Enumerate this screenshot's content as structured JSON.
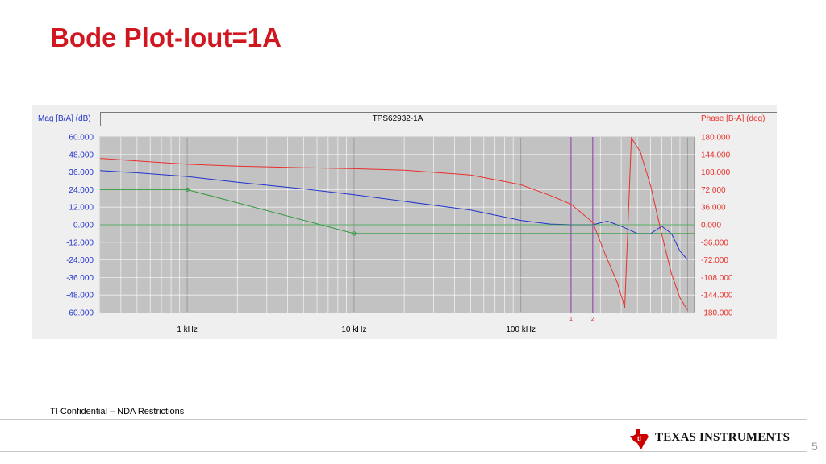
{
  "slide": {
    "title": "Bode Plot-Iout=1A",
    "footer": "TI Confidential – NDA Restrictions",
    "page_number": "5",
    "logo_text": "TEXAS INSTRUMENTS"
  },
  "chart_data": {
    "type": "line",
    "title": "TPS62932-1A",
    "ylabel_left": "Mag [B/A] (dB)",
    "ylabel_right": "Phase [B-A] (deg)",
    "x_scale": "log",
    "x_range_hz": [
      300,
      1100000
    ],
    "x_ticks": [
      {
        "value": 1000,
        "label": "1 kHz"
      },
      {
        "value": 10000,
        "label": "10 kHz"
      },
      {
        "value": 100000,
        "label": "100 kHz"
      }
    ],
    "y_left_range": [
      -60,
      60
    ],
    "y_left_ticks": [
      "60.000",
      "48.000",
      "36.000",
      "24.000",
      "12.000",
      "0.000",
      "-12.000",
      "-24.000",
      "-36.000",
      "-48.000",
      "-60.000"
    ],
    "y_right_range": [
      -180,
      180
    ],
    "y_right_ticks": [
      "180.000",
      "144.000",
      "108.000",
      "72.000",
      "36.000",
      "0.000",
      "-36.000",
      "-72.000",
      "-108.000",
      "-144.000",
      "-180.000"
    ],
    "grid": true,
    "cursors": [
      {
        "label": "1",
        "x": 200000
      },
      {
        "label": "2",
        "x": 270000
      }
    ],
    "series": [
      {
        "axis": "left",
        "color": "#2233cc",
        "points": [
          [
            300,
            37
          ],
          [
            500,
            35.5
          ],
          [
            1000,
            33
          ],
          [
            2000,
            29
          ],
          [
            5000,
            24.5
          ],
          [
            10000,
            20.5
          ],
          [
            20000,
            16
          ],
          [
            50000,
            10
          ],
          [
            100000,
            3
          ],
          [
            150000,
            0.5
          ],
          [
            200000,
            0
          ],
          [
            270000,
            0
          ],
          [
            330000,
            2.5
          ],
          [
            400000,
            -1
          ],
          [
            500000,
            -6
          ],
          [
            600000,
            -6
          ],
          [
            700000,
            -1
          ],
          [
            800000,
            -6
          ],
          [
            900000,
            -18
          ],
          [
            1000000,
            -24
          ]
        ]
      },
      {
        "axis": "right",
        "color": "#e8302a",
        "points": [
          [
            300,
            136
          ],
          [
            500,
            131
          ],
          [
            1000,
            124
          ],
          [
            2000,
            120
          ],
          [
            5000,
            117
          ],
          [
            10000,
            115
          ],
          [
            20000,
            112
          ],
          [
            50000,
            102
          ],
          [
            100000,
            82
          ],
          [
            150000,
            60
          ],
          [
            200000,
            42
          ],
          [
            270000,
            5
          ],
          [
            320000,
            -60
          ],
          [
            380000,
            -120
          ],
          [
            420000,
            -170
          ],
          [
            460000,
            178
          ],
          [
            520000,
            150
          ],
          [
            600000,
            80
          ],
          [
            700000,
            -20
          ],
          [
            800000,
            -100
          ],
          [
            900000,
            -150
          ],
          [
            1000000,
            -175
          ]
        ]
      },
      {
        "axis": "left",
        "color": "#2e9a3a",
        "points": [
          [
            300,
            24
          ],
          [
            1000,
            24
          ],
          [
            10000,
            -6
          ],
          [
            1100000,
            -6
          ]
        ]
      }
    ]
  }
}
